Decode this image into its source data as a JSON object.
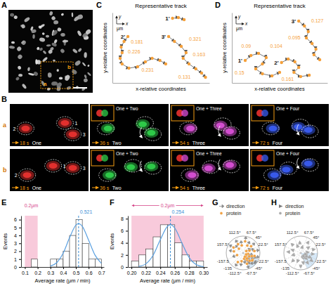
{
  "images": {
    "A": {
      "label": "A",
      "regions": [
        "a",
        "b"
      ]
    },
    "B": {
      "label": "B",
      "rows": [
        {
          "label": "a",
          "frames": [
            {
              "time": "18 s",
              "name": "One",
              "cells": [
                "1",
                "2",
                "3"
              ]
            },
            {
              "time": "36 s",
              "name": "Two",
              "inset": "One + Two"
            },
            {
              "time": "54 s",
              "name": "Three",
              "inset": "One + Three"
            },
            {
              "time": "72 s",
              "name": "Four",
              "inset": "One + Four"
            }
          ]
        },
        {
          "label": "b",
          "frames": [
            {
              "time": "18 s",
              "name": "One",
              "cells": [
                "1",
                "2",
                "3"
              ]
            },
            {
              "time": "36 s",
              "name": "Two",
              "inset": "One + Two"
            },
            {
              "time": "54 s",
              "name": "Three",
              "inset": "One + Three"
            },
            {
              "time": "72 s",
              "name": "Four",
              "inset": "One + Four"
            }
          ]
        }
      ]
    }
  },
  "chart_data": [
    {
      "type": "track",
      "label": "C",
      "title": "Representative track",
      "x_label": "x-relative coordinates",
      "y_label": "y-relative coordinates",
      "axis_key": {
        "x": "x",
        "y": "y",
        "unit": "μm"
      },
      "xlim": [
        0,
        10
      ],
      "ylim": [
        0,
        10
      ],
      "tick_labels": false,
      "color": "#f5a03a",
      "series": [
        {
          "name": "1'",
          "x": [
            6.2,
            6.8,
            7.4
          ],
          "y": [
            9.2,
            9.3,
            9.0
          ]
        },
        {
          "name": "2'",
          "x": [
            1.6,
            1.2,
            0.9,
            1.0,
            0.8,
            1.0,
            1.7,
            2.6,
            3.4,
            4.1,
            4.9,
            5.5
          ],
          "y": [
            6.6,
            5.9,
            5.1,
            4.3,
            3.5,
            2.7,
            2.1,
            2.3,
            3.0,
            3.5,
            3.2,
            2.7
          ]
        },
        {
          "name": "3'",
          "x": [
            5.8,
            6.4,
            7.1,
            7.6,
            7.3,
            7.9,
            8.6,
            9.2,
            9.6
          ],
          "y": [
            6.6,
            5.9,
            5.2,
            4.3,
            3.5,
            2.7,
            2.0,
            1.4,
            0.8
          ]
        }
      ],
      "annotations": [
        {
          "text": "0.181",
          "x": 1.9,
          "y": 5.6
        },
        {
          "text": "0.226",
          "x": 1.6,
          "y": 4.2
        },
        {
          "text": "0.231",
          "x": 3.0,
          "y": 1.6
        },
        {
          "text": "0.321",
          "x": 7.9,
          "y": 6.0
        },
        {
          "text": "0.163",
          "x": 8.3,
          "y": 3.8
        },
        {
          "text": "0.131",
          "x": 6.8,
          "y": 0.6
        }
      ]
    },
    {
      "type": "track",
      "label": "D",
      "title": "Representative track",
      "x_label": "x-relative coordinates",
      "y_label": "y-relative coordinates",
      "axis_key": {
        "x": "x",
        "y": "y",
        "unit": "μm"
      },
      "xlim": [
        0,
        10
      ],
      "ylim": [
        0,
        10
      ],
      "tick_labels": false,
      "color": "#f5a03a",
      "series": [
        {
          "name": "1'",
          "x": [
            1.4,
            2.0,
            2.8,
            3.6,
            3.2,
            2.5,
            3.2,
            4.2,
            5.0
          ],
          "y": [
            3.2,
            3.9,
            4.2,
            3.6,
            2.7,
            2.0,
            1.3,
            1.0,
            1.5
          ]
        },
        {
          "name": "2'",
          "x": [
            5.2,
            5.9,
            6.6,
            7.0,
            6.5,
            7.2,
            8.1
          ],
          "y": [
            2.9,
            3.4,
            3.0,
            2.2,
            1.5,
            0.9,
            1.1
          ]
        },
        {
          "name": "3'",
          "x": [
            7.0,
            7.6,
            8.0,
            7.8,
            8.4,
            8.8,
            8.6,
            9.2
          ],
          "y": [
            8.8,
            8.1,
            7.3,
            6.4,
            5.6,
            4.8,
            4.0,
            3.3
          ]
        }
      ],
      "annotations": [
        {
          "text": "0.09",
          "x": 1.0,
          "y": 5.0
        },
        {
          "text": "0.15",
          "x": 0.3,
          "y": 1.2
        },
        {
          "text": "0.104",
          "x": 4.0,
          "y": 5.0
        },
        {
          "text": "0.161",
          "x": 5.2,
          "y": 0.3
        },
        {
          "text": "0.127",
          "x": 8.3,
          "y": 8.6
        },
        {
          "text": "0.095",
          "x": 5.9,
          "y": 6.2
        }
      ]
    },
    {
      "type": "histogram",
      "label": "E",
      "x_label": "Average rate (μm / min)",
      "y_label": "Events",
      "xlim": [
        0.07,
        0.72
      ],
      "ylim": [
        0,
        6.5
      ],
      "xticks": [
        0.1,
        0.2,
        0.3,
        0.4,
        0.5,
        0.6,
        0.7
      ],
      "yticks": [
        0,
        1,
        2,
        3,
        4,
        5,
        6
      ],
      "bins": [
        0.15,
        0.2,
        0.25,
        0.3,
        0.35,
        0.4,
        0.45,
        0.5,
        0.55,
        0.6,
        0.65,
        0.7
      ],
      "values": [
        1,
        0,
        0,
        1,
        1,
        2,
        4,
        6,
        3,
        1,
        1
      ],
      "color": "#ffffff",
      "band": {
        "range": [
          0.1,
          0.2
        ],
        "label": "0.2μm",
        "color": "#f8cadb"
      },
      "ref_line": {
        "value": 0.521,
        "color": "#3a8fd6"
      },
      "fit": {
        "x": [
          0.3,
          0.35,
          0.4,
          0.45,
          0.5,
          0.521,
          0.55,
          0.6,
          0.65,
          0.7
        ],
        "y": [
          0.12,
          0.56,
          1.75,
          3.71,
          5.31,
          5.5,
          5.15,
          3.38,
          1.5,
          0.45
        ],
        "color": "#5aa0e0"
      }
    },
    {
      "type": "histogram",
      "label": "F",
      "x_label": "Average rate (μm / min)",
      "y_label": "Events",
      "xlim": [
        0.195,
        0.305
      ],
      "ylim": [
        0,
        8.5
      ],
      "xticks": [
        {
          "value": 0.2,
          "label": "0.20"
        },
        {
          "value": 0.22,
          "label": "0.22"
        },
        {
          "value": 0.24,
          "label": "0.24"
        },
        {
          "value": 0.26,
          "label": "0.26"
        },
        {
          "value": 0.28,
          "label": "0.28"
        },
        {
          "value": 0.3,
          "label": "0.30"
        }
      ],
      "yticks": [
        0,
        2,
        4,
        6,
        8
      ],
      "bins": [
        0.2,
        0.21,
        0.22,
        0.23,
        0.24,
        0.25,
        0.26,
        0.27,
        0.28,
        0.29,
        0.3
      ],
      "values": [
        1,
        2,
        3,
        5,
        7,
        7,
        4,
        2,
        1,
        1
      ],
      "color": "#ffffff",
      "band": {
        "range": [
          0.2,
          0.3
        ],
        "label": "0.2μm",
        "color": "#f8cadb"
      },
      "ref_line": {
        "value": 0.254,
        "color": "#3a8fd6"
      },
      "fit": {
        "x": [
          0.21,
          0.22,
          0.23,
          0.24,
          0.25,
          0.254,
          0.26,
          0.27,
          0.28,
          0.29,
          0.3
        ],
        "y": [
          0.1,
          0.54,
          1.95,
          4.53,
          6.75,
          7,
          6.46,
          3.96,
          1.56,
          0.39,
          0.06
        ],
        "color": "#5aa0e0"
      }
    },
    {
      "type": "polar",
      "label": "G",
      "rlim": [
        0,
        1
      ],
      "legend": "top-left",
      "theta_ticks": [
        {
          "value": 22.5,
          "label": "22.5°"
        },
        {
          "value": 45,
          "label": "45°"
        },
        {
          "value": 67.5,
          "label": "67.5°"
        },
        {
          "value": 112.5,
          "label": "112.5°"
        },
        {
          "value": 157.5,
          "label": "157.5°"
        },
        -157.5,
        -135,
        {
          "value": -112.5,
          "label": "-112.5°"
        },
        {
          "value": -67.5,
          "label": "-67.5°"
        },
        {
          "value": -45,
          "label": "-45°"
        },
        {
          "value": -22.5,
          "label": "-22.5°"
        }
      ],
      "sector": {
        "range": [
          -67.5,
          -22.5
        ],
        "color": "#d6e8f7"
      },
      "series": [
        {
          "name": "direction",
          "color": "#8c8c8c",
          "marker": "arrow",
          "theta": [
            100,
            120,
            135,
            150,
            80,
            60,
            40,
            20,
            10,
            -10,
            -20,
            -30,
            -35,
            -45,
            -50,
            -60,
            -70,
            -80,
            -25,
            -40,
            -55,
            -15,
            -65,
            -100,
            -120,
            170,
            -160,
            30
          ],
          "r": [
            0.45,
            0.6,
            0.35,
            0.65,
            0.7,
            0.5,
            0.62,
            0.4,
            0.68,
            0.3,
            0.55,
            0.42,
            0.7,
            0.25,
            0.6,
            0.48,
            0.68,
            0.35,
            0.2,
            0.7,
            0.4,
            0.7,
            0.25,
            0.5,
            0.62,
            0.55,
            0.38,
            0.22
          ]
        },
        {
          "name": "protein",
          "color": "#f0a040",
          "marker": "circle",
          "theta": [
            100,
            120,
            135,
            150,
            80,
            60,
            40,
            20,
            10,
            -10,
            -20,
            -30,
            -35,
            -45,
            -50,
            -60,
            -70,
            -80,
            -25,
            -40,
            -55,
            -15,
            -65,
            -100,
            -120,
            170,
            -160,
            30
          ],
          "r": [
            0.45,
            0.6,
            0.35,
            0.65,
            0.7,
            0.5,
            0.62,
            0.4,
            0.68,
            0.3,
            0.55,
            0.42,
            0.7,
            0.25,
            0.6,
            0.48,
            0.68,
            0.35,
            0.2,
            0.7,
            0.4,
            0.7,
            0.25,
            0.5,
            0.62,
            0.55,
            0.38,
            0.22
          ]
        }
      ]
    },
    {
      "type": "polar",
      "label": "H",
      "rlim": [
        0,
        1
      ],
      "legend": "top-left",
      "theta_ticks": [
        {
          "value": 22.5,
          "label": "22.5°"
        },
        {
          "value": 45,
          "label": "45°"
        },
        {
          "value": 67.5,
          "label": "67.5°"
        },
        {
          "value": 112.5,
          "label": "112.5°"
        },
        {
          "value": 157.5,
          "label": "157.5°"
        },
        -157.5,
        -135,
        {
          "value": -112.5,
          "label": "-112.5°"
        },
        {
          "value": -67.5,
          "label": "-67.5°"
        },
        {
          "value": -45,
          "label": "-45°"
        },
        {
          "value": -22.5,
          "label": "-22.5°"
        }
      ],
      "sector": {
        "range": [
          -67.5,
          0
        ],
        "color": "#d6e8f7"
      },
      "series": [
        {
          "name": "direction",
          "color": "#7a7a7a",
          "marker": "triangle",
          "theta": [
            95,
            115,
            135,
            160,
            75,
            55,
            35,
            15,
            5,
            -5,
            -15,
            -25,
            -35,
            -45,
            -55,
            -65,
            -75,
            -90,
            -110,
            -135,
            -165,
            175,
            -30,
            -50
          ],
          "r": [
            0.6,
            0.45,
            0.7,
            0.5,
            0.35,
            0.75,
            0.55,
            0.78,
            0.4,
            0.7,
            0.3,
            0.6,
            0.78,
            0.45,
            0.7,
            0.3,
            0.6,
            0.78,
            0.5,
            0.65,
            0.45,
            0.72,
            0.4,
            0.25
          ]
        },
        {
          "name": "protein",
          "color": "#a8a8a8",
          "marker": "circle",
          "theta": [
            95,
            115,
            135,
            160,
            75,
            55,
            35,
            15,
            5,
            -5,
            -15,
            -25,
            -35,
            -45,
            -55,
            -65,
            -75,
            -90,
            -110,
            -135,
            -165,
            175,
            -30,
            -50
          ],
          "r": [
            0.6,
            0.45,
            0.7,
            0.5,
            0.35,
            0.75,
            0.55,
            0.78,
            0.4,
            0.7,
            0.3,
            0.6,
            0.78,
            0.45,
            0.7,
            0.3,
            0.6,
            0.78,
            0.5,
            0.65,
            0.45,
            0.72,
            0.4,
            0.25
          ]
        }
      ]
    }
  ]
}
